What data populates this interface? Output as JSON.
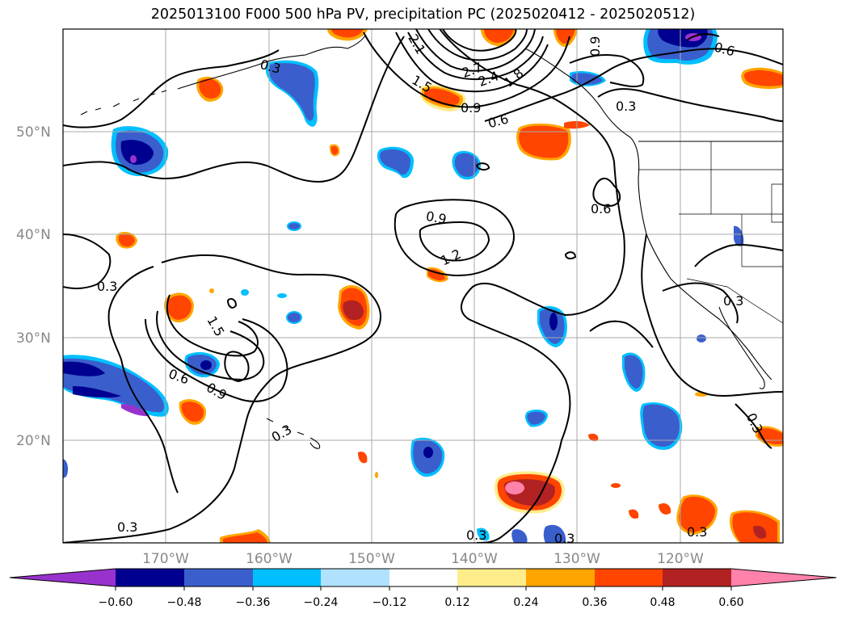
{
  "title": "2025013100 F000 500 hPa PV, precipitation PC (2025020412 - 2025020512)",
  "lat_labels": [
    "50°N",
    "40°N",
    "30°N",
    "20°N"
  ],
  "lon_labels": [
    "170°W",
    "160°W",
    "150°W",
    "140°W",
    "130°W",
    "120°W"
  ],
  "contour_labels": [
    "2.1",
    "2.7",
    "2.4",
    "1.8",
    "1.5",
    "0.9",
    "0.6",
    "0.9",
    "0.6",
    "0.3",
    "0.3",
    "0.9",
    "1.2",
    "0.6",
    "0.3",
    "0.3",
    "1.5",
    "0.6",
    "0.9",
    "0.3",
    "0.3",
    "0.3",
    "0.3",
    "0.3",
    "0.3"
  ],
  "colorbar": {
    "colors": [
      "#9932cc",
      "#000090",
      "#3a5fcd",
      "#00bfff",
      "#b0e2ff",
      "#ffffff",
      "#ffec8b",
      "#ffa500",
      "#ff4500",
      "#b22222",
      "#ff82ab"
    ],
    "ticks": [
      "−0.60",
      "−0.48",
      "−0.36",
      "−0.24",
      "−0.12",
      "0.12",
      "0.24",
      "0.36",
      "0.48",
      "0.60"
    ]
  },
  "colors": {
    "contour": "#000000",
    "grid": "#aaaaaa",
    "coast": "#000000"
  }
}
